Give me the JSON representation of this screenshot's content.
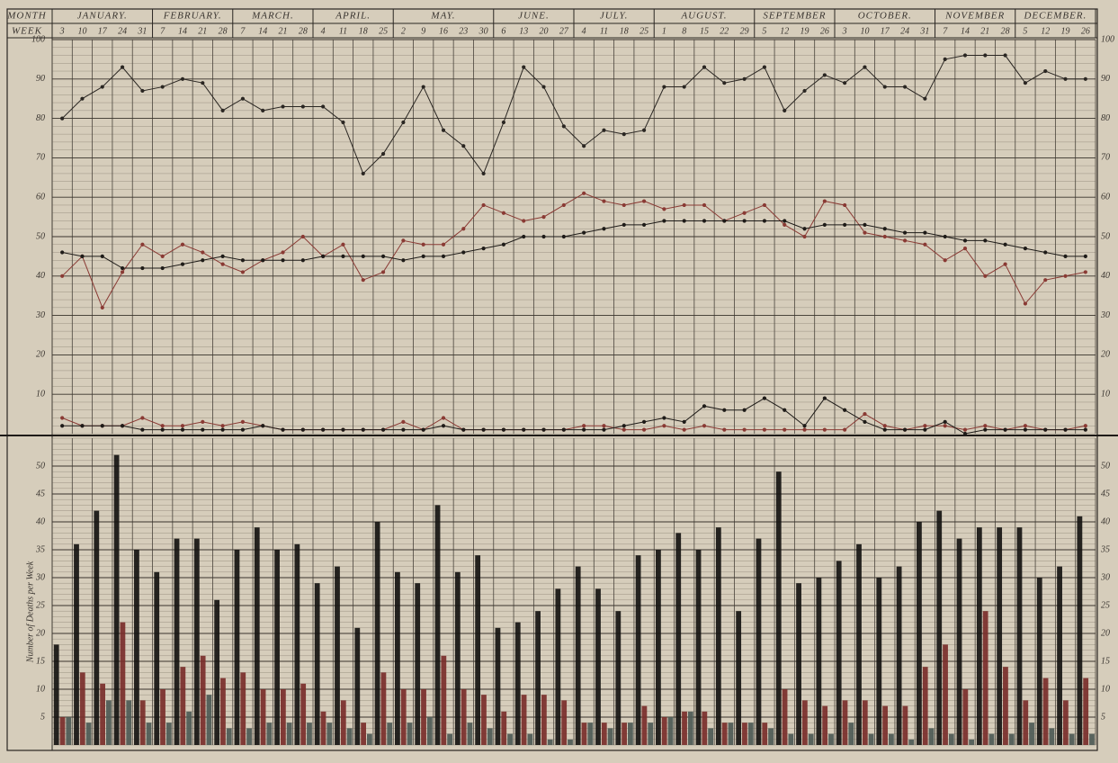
{
  "chart_data": [
    {
      "type": "line",
      "month_label": "Month",
      "week_label": "Week",
      "months": [
        "January.",
        "February.",
        "March.",
        "April.",
        "May.",
        "June.",
        "July.",
        "August.",
        "September",
        "October.",
        "November",
        "December."
      ],
      "categories": [
        "3",
        "10",
        "17",
        "24",
        "31",
        "7",
        "14",
        "21",
        "28",
        "7",
        "14",
        "21",
        "28",
        "4",
        "11",
        "18",
        "25",
        "2",
        "9",
        "16",
        "23",
        "30",
        "6",
        "13",
        "20",
        "27",
        "4",
        "11",
        "18",
        "25",
        "1",
        "8",
        "15",
        "22",
        "29",
        "5",
        "12",
        "19",
        "26",
        "3",
        "10",
        "17",
        "24",
        "31",
        "7",
        "14",
        "21",
        "28",
        "5",
        "12",
        "19",
        "26"
      ],
      "ylim": [
        0,
        100
      ],
      "yticks": [
        10,
        20,
        30,
        40,
        50,
        60,
        70,
        80,
        90,
        100
      ],
      "grid": true,
      "series": [
        {
          "color": "#2a2622",
          "values": [
            80,
            85,
            88,
            93,
            87,
            88,
            90,
            89,
            82,
            85,
            82,
            83,
            83,
            83,
            79,
            66,
            71,
            79,
            88,
            77,
            73,
            66,
            79,
            93,
            88,
            78,
            73,
            77,
            76,
            77,
            88,
            88,
            93,
            89,
            90,
            93,
            82,
            87,
            91,
            89,
            93,
            88,
            88,
            85,
            95,
            96,
            96,
            96,
            89,
            92,
            90,
            90
          ]
        },
        {
          "color": "#8a3a34",
          "values": [
            40,
            45,
            32,
            41,
            48,
            45,
            48,
            46,
            43,
            41,
            44,
            46,
            50,
            45,
            48,
            39,
            41,
            49,
            48,
            48,
            52,
            58,
            56,
            54,
            55,
            58,
            61,
            59,
            58,
            59,
            57,
            58,
            58,
            54,
            56,
            58,
            53,
            50,
            59,
            58,
            51,
            50,
            49,
            48,
            44,
            47,
            40,
            43,
            33,
            39,
            40,
            41
          ]
        },
        {
          "color": "#1e1b18",
          "values": [
            46,
            45,
            45,
            42,
            42,
            42,
            43,
            44,
            45,
            44,
            44,
            44,
            44,
            45,
            45,
            45,
            45,
            44,
            45,
            45,
            46,
            47,
            48,
            50,
            50,
            50,
            51,
            52,
            53,
            53,
            54,
            54,
            54,
            54,
            54,
            54,
            54,
            52,
            53,
            53,
            53,
            52,
            51,
            51,
            50,
            49,
            49,
            48,
            47,
            46,
            45,
            45
          ]
        },
        {
          "color": "#8a3a34",
          "values": [
            4,
            2,
            2,
            2,
            4,
            2,
            2,
            3,
            2,
            3,
            2,
            1,
            1,
            1,
            1,
            1,
            1,
            3,
            1,
            4,
            1,
            1,
            1,
            1,
            1,
            1,
            2,
            2,
            1,
            1,
            2,
            1,
            2,
            1,
            1,
            1,
            1,
            1,
            1,
            1,
            5,
            2,
            1,
            2,
            2,
            1,
            2,
            1,
            2,
            1,
            1,
            2
          ]
        },
        {
          "color": "#1e1b18",
          "values": [
            2,
            2,
            2,
            2,
            1,
            1,
            1,
            1,
            1,
            1,
            2,
            1,
            1,
            1,
            1,
            1,
            1,
            1,
            1,
            2,
            1,
            1,
            1,
            1,
            1,
            1,
            1,
            1,
            2,
            3,
            4,
            3,
            7,
            6,
            6,
            9,
            6,
            2,
            9,
            6,
            3,
            1,
            1,
            1,
            3,
            0,
            1,
            1,
            1,
            1,
            1,
            1
          ]
        }
      ]
    },
    {
      "type": "bar",
      "ylabel": "Number of Deaths per Week",
      "ylim": [
        0,
        55
      ],
      "yticks": [
        5,
        10,
        15,
        20,
        25,
        30,
        35,
        40,
        45,
        50
      ],
      "grid": true,
      "series": [
        {
          "color": "#151311",
          "values": [
            18,
            36,
            42,
            52,
            35,
            31,
            37,
            37,
            26,
            35,
            39,
            35,
            36,
            29,
            32,
            21,
            40,
            31,
            29,
            43,
            31,
            34,
            21,
            22,
            24,
            28,
            32,
            28,
            24,
            34,
            35,
            38,
            35,
            39,
            24,
            37,
            49,
            29,
            30,
            33,
            36,
            30,
            32,
            40,
            42,
            37,
            39,
            39,
            39,
            30,
            32,
            41
          ]
        },
        {
          "color": "#7a2e2a",
          "values": [
            5,
            13,
            11,
            22,
            8,
            10,
            14,
            16,
            12,
            13,
            10,
            10,
            11,
            6,
            8,
            4,
            13,
            10,
            10,
            16,
            10,
            9,
            6,
            9,
            9,
            8,
            4,
            4,
            4,
            7,
            5,
            6,
            6,
            4,
            4,
            4,
            10,
            8,
            7,
            8,
            8,
            7,
            7,
            14,
            18,
            10,
            24,
            14,
            8,
            12,
            8,
            12
          ]
        },
        {
          "color": "#4d5a55",
          "values": [
            5,
            4,
            8,
            8,
            4,
            4,
            6,
            9,
            3,
            3,
            4,
            4,
            4,
            4,
            3,
            2,
            4,
            4,
            5,
            2,
            4,
            3,
            2,
            2,
            1,
            1,
            4,
            3,
            4,
            4,
            5,
            6,
            3,
            4,
            4,
            3,
            2,
            2,
            2,
            4,
            2,
            2,
            1,
            3,
            2,
            1,
            2,
            2,
            4,
            3,
            2,
            2
          ]
        }
      ]
    }
  ]
}
